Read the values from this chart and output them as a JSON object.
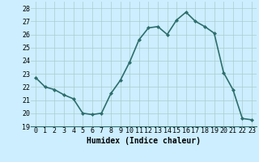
{
  "x": [
    0,
    1,
    2,
    3,
    4,
    5,
    6,
    7,
    8,
    9,
    10,
    11,
    12,
    13,
    14,
    15,
    16,
    17,
    18,
    19,
    20,
    21,
    22,
    23
  ],
  "y": [
    22.7,
    22.0,
    21.8,
    21.4,
    21.1,
    20.0,
    19.9,
    20.0,
    21.5,
    22.5,
    23.9,
    25.6,
    26.5,
    26.6,
    26.0,
    27.1,
    27.7,
    27.0,
    26.6,
    26.1,
    23.1,
    21.8,
    19.6,
    19.5
  ],
  "line_color": "#2d6e6e",
  "marker": "D",
  "marker_size": 2.0,
  "bg_color": "#cceeff",
  "grid_major_color": "#aacccc",
  "xlabel": "Humidex (Indice chaleur)",
  "xlim": [
    -0.5,
    23.5
  ],
  "ylim": [
    19,
    28.5
  ],
  "yticks": [
    19,
    20,
    21,
    22,
    23,
    24,
    25,
    26,
    27,
    28
  ],
  "xticks": [
    0,
    1,
    2,
    3,
    4,
    5,
    6,
    7,
    8,
    9,
    10,
    11,
    12,
    13,
    14,
    15,
    16,
    17,
    18,
    19,
    20,
    21,
    22,
    23
  ],
  "xlabel_fontsize": 7,
  "tick_fontsize": 6,
  "line_width": 1.2
}
